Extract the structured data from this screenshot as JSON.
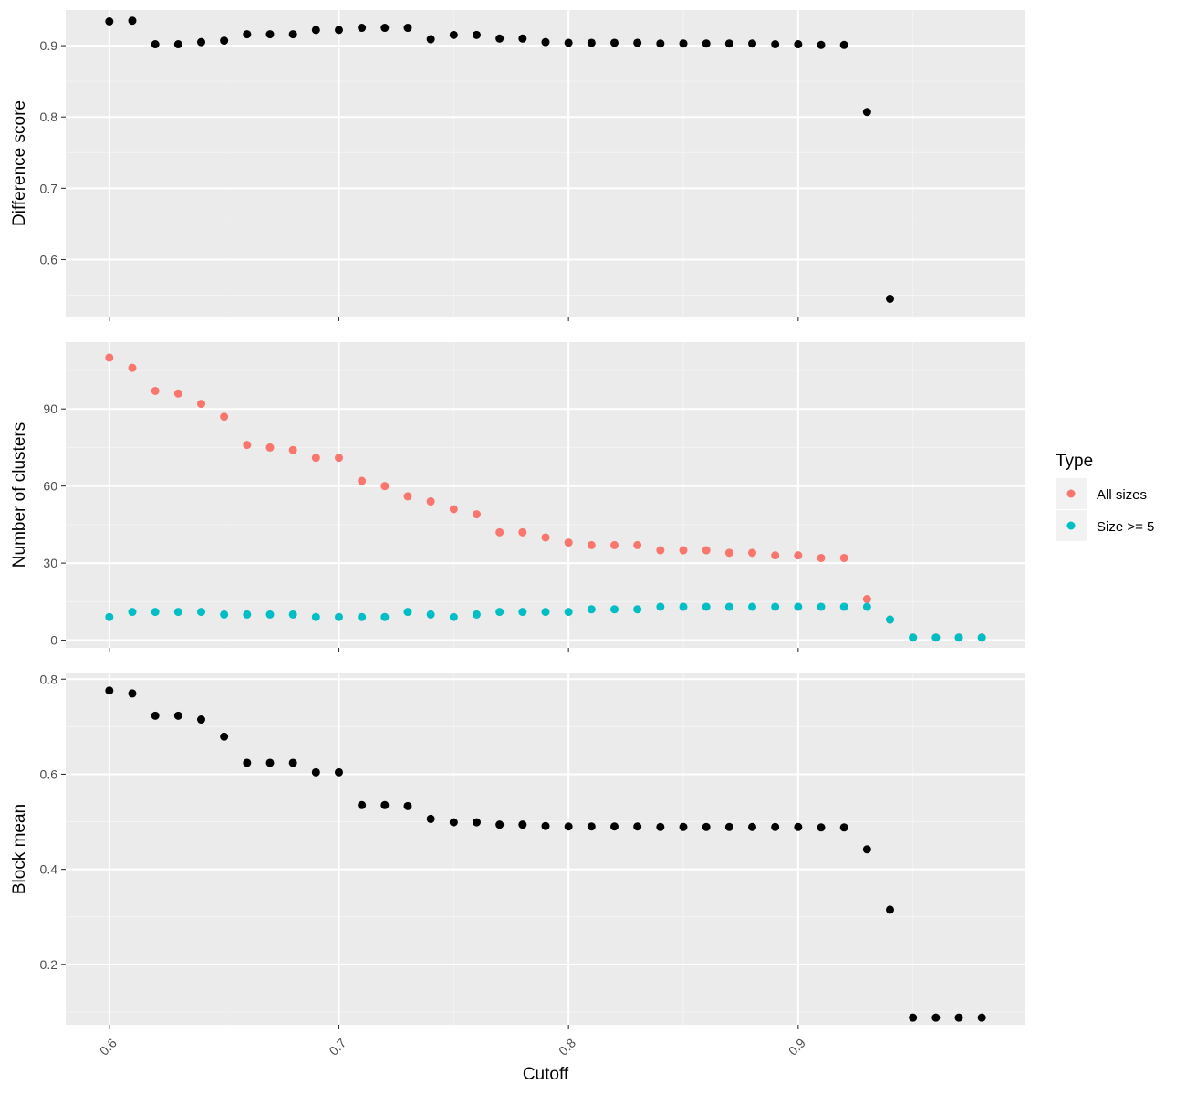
{
  "chart_data": {
    "type": "scatter",
    "x_label": "Cutoff",
    "x_ticks": [
      "0.6",
      "0.7",
      "0.8",
      "0.9"
    ],
    "x_tick_values": [
      0.6,
      0.7,
      0.8,
      0.9
    ],
    "x_range": [
      0.581,
      0.999
    ],
    "grid": true,
    "background_color": "#ebebeb",
    "legend": {
      "title": "Type",
      "placement": "right",
      "entries": [
        {
          "label": "All sizes",
          "color": "#f8766d"
        },
        {
          "label": "Size >= 5",
          "color": "#00bfc4"
        }
      ]
    },
    "panels": [
      {
        "ylabel": "Difference score",
        "y_range": [
          0.52,
          0.95
        ],
        "y_ticks": [
          "0.6",
          "0.7",
          "0.8",
          "0.9"
        ],
        "y_tick_values": [
          0.6,
          0.7,
          0.8,
          0.9
        ],
        "series": [
          {
            "color": "#000000",
            "x": [
              0.6,
              0.61,
              0.62,
              0.63,
              0.64,
              0.65,
              0.66,
              0.67,
              0.68,
              0.69,
              0.7,
              0.71,
              0.72,
              0.73,
              0.74,
              0.75,
              0.76,
              0.77,
              0.78,
              0.79,
              0.8,
              0.81,
              0.82,
              0.83,
              0.84,
              0.85,
              0.86,
              0.87,
              0.88,
              0.89,
              0.9,
              0.91,
              0.92,
              0.93,
              0.94
            ],
            "y": [
              0.934,
              0.935,
              0.902,
              0.902,
              0.905,
              0.907,
              0.916,
              0.916,
              0.916,
              0.922,
              0.922,
              0.925,
              0.925,
              0.925,
              0.909,
              0.915,
              0.915,
              0.91,
              0.91,
              0.905,
              0.904,
              0.904,
              0.904,
              0.904,
              0.903,
              0.903,
              0.903,
              0.903,
              0.903,
              0.902,
              0.902,
              0.901,
              0.901,
              0.807,
              0.545
            ]
          }
        ]
      },
      {
        "ylabel": "Number of clusters",
        "y_range": [
          -3,
          116
        ],
        "y_ticks": [
          "0",
          "30",
          "60",
          "90"
        ],
        "y_tick_values": [
          0,
          30,
          60,
          90
        ],
        "series": [
          {
            "name": "All sizes",
            "color": "#f8766d",
            "x": [
              0.6,
              0.61,
              0.62,
              0.63,
              0.64,
              0.65,
              0.66,
              0.67,
              0.68,
              0.69,
              0.7,
              0.71,
              0.72,
              0.73,
              0.74,
              0.75,
              0.76,
              0.77,
              0.78,
              0.79,
              0.8,
              0.81,
              0.82,
              0.83,
              0.84,
              0.85,
              0.86,
              0.87,
              0.88,
              0.89,
              0.9,
              0.91,
              0.92,
              0.93,
              0.94,
              0.95,
              0.96,
              0.97,
              0.98
            ],
            "y": [
              110,
              106,
              97,
              96,
              92,
              87,
              76,
              75,
              74,
              71,
              71,
              62,
              60,
              56,
              54,
              51,
              49,
              42,
              42,
              40,
              38,
              37,
              37,
              37,
              35,
              35,
              35,
              34,
              34,
              33,
              33,
              32,
              32,
              16,
              8,
              1,
              1,
              1,
              1
            ]
          },
          {
            "name": "Size >= 5",
            "color": "#00bfc4",
            "x": [
              0.6,
              0.61,
              0.62,
              0.63,
              0.64,
              0.65,
              0.66,
              0.67,
              0.68,
              0.69,
              0.7,
              0.71,
              0.72,
              0.73,
              0.74,
              0.75,
              0.76,
              0.77,
              0.78,
              0.79,
              0.8,
              0.81,
              0.82,
              0.83,
              0.84,
              0.85,
              0.86,
              0.87,
              0.88,
              0.89,
              0.9,
              0.91,
              0.92,
              0.93,
              0.94,
              0.95,
              0.96,
              0.97,
              0.98
            ],
            "y": [
              9,
              11,
              11,
              11,
              11,
              10,
              10,
              10,
              10,
              9,
              9,
              9,
              9,
              11,
              10,
              9,
              10,
              11,
              11,
              11,
              11,
              12,
              12,
              12,
              13,
              13,
              13,
              13,
              13,
              13,
              13,
              13,
              13,
              13,
              8,
              1,
              1,
              1,
              1
            ]
          }
        ]
      },
      {
        "ylabel": "Block mean",
        "y_range": [
          0.073,
          0.812
        ],
        "y_ticks": [
          "0.2",
          "0.4",
          "0.6",
          "0.8"
        ],
        "y_tick_values": [
          0.2,
          0.4,
          0.6,
          0.8
        ],
        "series": [
          {
            "color": "#000000",
            "x": [
              0.6,
              0.61,
              0.62,
              0.63,
              0.64,
              0.65,
              0.66,
              0.67,
              0.68,
              0.69,
              0.7,
              0.71,
              0.72,
              0.73,
              0.74,
              0.75,
              0.76,
              0.77,
              0.78,
              0.79,
              0.8,
              0.81,
              0.82,
              0.83,
              0.84,
              0.85,
              0.86,
              0.87,
              0.88,
              0.89,
              0.9,
              0.91,
              0.92,
              0.93,
              0.94,
              0.95,
              0.96,
              0.97,
              0.98
            ],
            "y": [
              0.776,
              0.77,
              0.723,
              0.723,
              0.715,
              0.679,
              0.624,
              0.624,
              0.624,
              0.604,
              0.604,
              0.535,
              0.535,
              0.533,
              0.506,
              0.499,
              0.499,
              0.494,
              0.494,
              0.491,
              0.49,
              0.49,
              0.49,
              0.49,
              0.489,
              0.489,
              0.489,
              0.489,
              0.489,
              0.489,
              0.489,
              0.488,
              0.488,
              0.442,
              0.315,
              0.088,
              0.088,
              0.088,
              0.088
            ]
          }
        ]
      }
    ]
  }
}
